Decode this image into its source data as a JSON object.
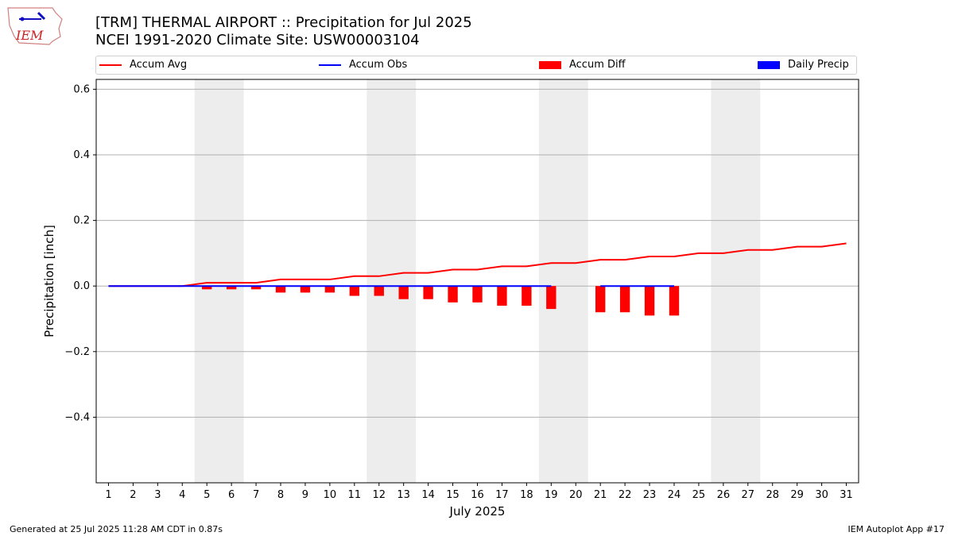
{
  "header": {
    "title_line1": "[TRM] THERMAL AIRPORT :: Precipitation for Jul 2025",
    "title_line2": "NCEI 1991-2020 Climate Site: USW00003104",
    "logo_text": "IEM"
  },
  "footer": {
    "left": "Generated at 25 Jul 2025 11:28 AM CDT in 0.87s",
    "right": "IEM Autoplot App #17"
  },
  "colors": {
    "accum_avg": "#ff0000",
    "accum_obs": "#0000ff",
    "accum_diff": "#ff0000",
    "daily_precip": "#0000ff",
    "weekend_band": "#ededed",
    "grid": "#b0b0b0"
  },
  "chart_data": {
    "type": "bar",
    "xlabel": "July 2025",
    "ylabel": "Precipitation [inch]",
    "ylim": [
      -0.6,
      0.63
    ],
    "yticks": [
      -0.4,
      -0.2,
      0.0,
      0.2,
      0.4,
      0.6
    ],
    "ytick_labels": [
      "−0.4",
      "−0.2",
      "0.0",
      "0.2",
      "0.4",
      "0.6"
    ],
    "xlim": [
      0.5,
      31.5
    ],
    "x": [
      1,
      2,
      3,
      4,
      5,
      6,
      7,
      8,
      9,
      10,
      11,
      12,
      13,
      14,
      15,
      16,
      17,
      18,
      19,
      20,
      21,
      22,
      23,
      24,
      25,
      26,
      27,
      28,
      29,
      30,
      31
    ],
    "x_tick_labels": [
      "1",
      "2",
      "3",
      "4",
      "5",
      "6",
      "7",
      "8",
      "9",
      "10",
      "11",
      "12",
      "13",
      "14",
      "15",
      "16",
      "17",
      "18",
      "19",
      "20",
      "21",
      "22",
      "23",
      "24",
      "25",
      "26",
      "27",
      "28",
      "29",
      "30",
      "31"
    ],
    "grid": "horizontal",
    "legend": {
      "placement": "top",
      "entries": [
        "Accum Avg",
        "Accum Obs",
        "Accum Diff",
        "Daily Precip"
      ]
    },
    "weekend_shading": [
      [
        5,
        6
      ],
      [
        12,
        13
      ],
      [
        19,
        20
      ],
      [
        26,
        27
      ]
    ],
    "series": [
      {
        "name": "Accum Avg",
        "kind": "line",
        "x": [
          1,
          2,
          3,
          4,
          5,
          6,
          7,
          8,
          9,
          10,
          11,
          12,
          13,
          14,
          15,
          16,
          17,
          18,
          19,
          20,
          21,
          22,
          23,
          24,
          25,
          26,
          27,
          28,
          29,
          30,
          31
        ],
        "values": [
          0.0,
          0.0,
          0.0,
          0.0,
          0.01,
          0.01,
          0.01,
          0.02,
          0.02,
          0.02,
          0.03,
          0.03,
          0.04,
          0.04,
          0.05,
          0.05,
          0.06,
          0.06,
          0.07,
          0.07,
          0.08,
          0.08,
          0.09,
          0.09,
          0.1,
          0.1,
          0.11,
          0.11,
          0.12,
          0.12,
          0.13
        ]
      },
      {
        "name": "Accum Obs",
        "kind": "line",
        "segments": [
          {
            "x": [
              1,
              2,
              3,
              4,
              5,
              6,
              7,
              8,
              9,
              10,
              11,
              12,
              13,
              14,
              15,
              16,
              17,
              18,
              19
            ],
            "values": [
              0,
              0,
              0,
              0,
              0,
              0,
              0,
              0,
              0,
              0,
              0,
              0,
              0,
              0,
              0,
              0,
              0,
              0,
              0
            ]
          },
          {
            "x": [
              21,
              22,
              23,
              24
            ],
            "values": [
              0,
              0,
              0,
              0
            ]
          }
        ]
      },
      {
        "name": "Accum Diff",
        "kind": "bar",
        "x": [
          5,
          6,
          7,
          8,
          9,
          10,
          11,
          12,
          13,
          14,
          15,
          16,
          17,
          18,
          19,
          21,
          22,
          23,
          24
        ],
        "values": [
          -0.01,
          -0.01,
          -0.01,
          -0.02,
          -0.02,
          -0.02,
          -0.03,
          -0.03,
          -0.04,
          -0.04,
          -0.05,
          -0.05,
          -0.06,
          -0.06,
          -0.07,
          -0.08,
          -0.08,
          -0.09,
          -0.09
        ]
      },
      {
        "name": "Daily Precip",
        "kind": "bar",
        "x": [],
        "values": []
      }
    ]
  }
}
